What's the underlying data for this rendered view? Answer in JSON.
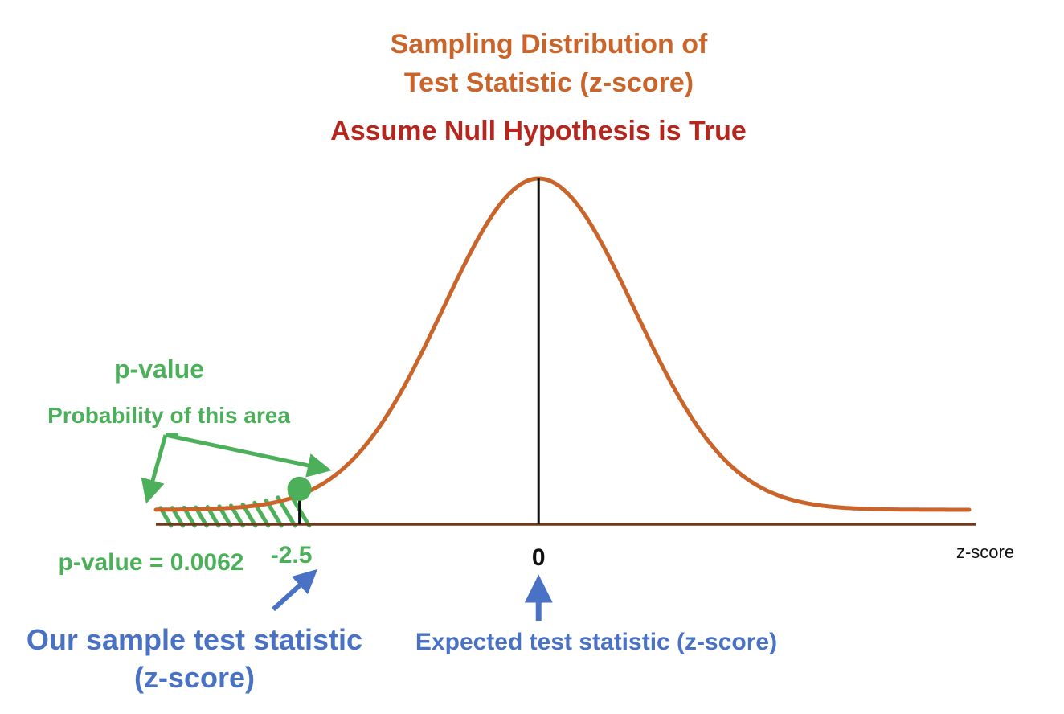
{
  "title": {
    "line1": "Sampling Distribution of",
    "line2": "Test Statistic (z-score)",
    "assumption": "Assume Null Hypothesis is True"
  },
  "pvalue_callout": {
    "heading": "p-value",
    "description": "Probability of this area",
    "result": "p-value = 0.0062"
  },
  "axis": {
    "label": "z-score",
    "tick_sample": "-2.5",
    "tick_center": "0"
  },
  "annotations": {
    "sample_line1": "Our sample test statistic",
    "sample_line2": "(z-score)",
    "expected": "Expected test statistic (z-score)"
  },
  "colors": {
    "orange": "#c9652b",
    "red": "#b5261e",
    "green": "#4caf5a",
    "blue": "#4a72c4",
    "axis": "#6b3a1f",
    "black": "#111111"
  },
  "chart_data": {
    "type": "area",
    "distribution": "standard normal",
    "mean": 0,
    "sd": 1,
    "xlim": [
      -4,
      4.5
    ],
    "observed_z": -2.5,
    "expected_z": 0,
    "shaded_region": [
      -4,
      -2.5
    ],
    "p_value": 0.0062
  }
}
